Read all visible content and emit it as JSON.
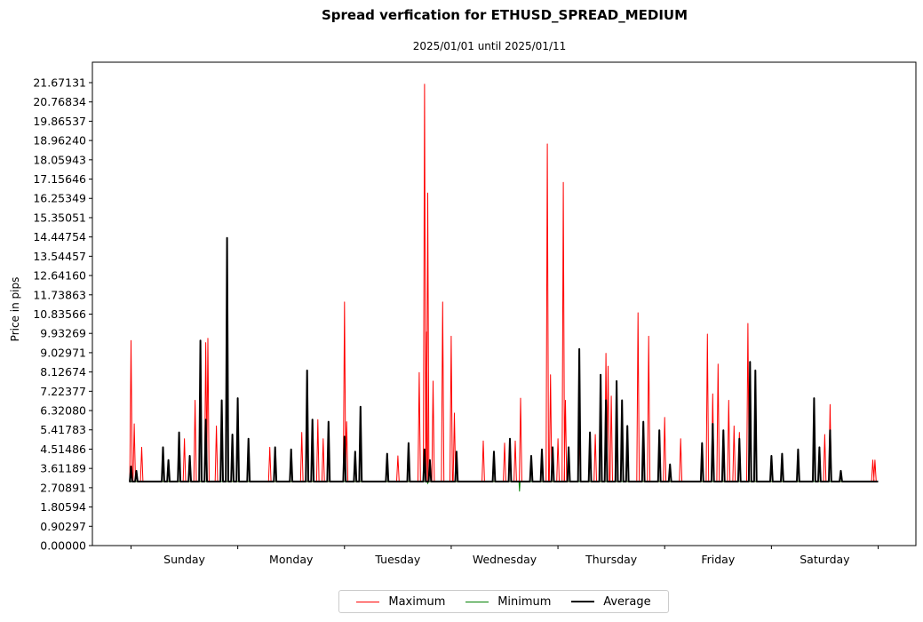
{
  "chart_data": {
    "type": "line",
    "title": "Spread verfication for ETHUSD_SPREAD_MEDIUM",
    "subtitle": "2025/01/01 until 2025/01/11",
    "ylabel": "Price in pips",
    "xlabel": "",
    "ylim": [
      0,
      21.67131
    ],
    "y_ticks": [
      "0.00000",
      "0.90297",
      "1.80594",
      "2.70891",
      "3.61189",
      "4.51486",
      "5.41783",
      "6.32080",
      "7.22377",
      "8.12674",
      "9.02971",
      "9.93269",
      "10.83566",
      "11.73863",
      "12.64160",
      "13.54457",
      "14.44754",
      "15.35051",
      "16.25349",
      "17.15646",
      "18.05943",
      "18.96240",
      "19.86537",
      "20.76834",
      "21.67131"
    ],
    "x_categories": [
      "Sunday",
      "Monday",
      "Tuesday",
      "Wednesday",
      "Thursday",
      "Friday",
      "Saturday"
    ],
    "x_range": [
      0,
      7
    ],
    "grid": false,
    "legend_position": "bottom-center",
    "baseline": 3.0,
    "series": [
      {
        "name": "Maximum",
        "color": "#ff0000",
        "stroke": 1,
        "spikes": [
          [
            0.0,
            9.6
          ],
          [
            0.03,
            5.7
          ],
          [
            0.1,
            4.6
          ],
          [
            0.5,
            5.0
          ],
          [
            0.6,
            6.8
          ],
          [
            0.7,
            9.5
          ],
          [
            0.72,
            9.7
          ],
          [
            0.8,
            5.6
          ],
          [
            0.85,
            5.8
          ],
          [
            1.3,
            4.6
          ],
          [
            1.6,
            5.3
          ],
          [
            1.75,
            5.9
          ],
          [
            1.8,
            5.0
          ],
          [
            2.0,
            11.4
          ],
          [
            2.02,
            5.8
          ],
          [
            2.5,
            4.2
          ],
          [
            2.7,
            8.1
          ],
          [
            2.75,
            21.6
          ],
          [
            2.77,
            10.0
          ],
          [
            2.78,
            16.5
          ],
          [
            2.83,
            7.7
          ],
          [
            2.92,
            11.4
          ],
          [
            3.0,
            9.8
          ],
          [
            3.03,
            6.2
          ],
          [
            3.3,
            4.9
          ],
          [
            3.5,
            4.8
          ],
          [
            3.6,
            4.9
          ],
          [
            3.65,
            6.9
          ],
          [
            3.75,
            4.0
          ],
          [
            3.9,
            18.8
          ],
          [
            3.93,
            8.0
          ],
          [
            4.0,
            5.0
          ],
          [
            4.05,
            17.0
          ],
          [
            4.07,
            6.8
          ],
          [
            4.2,
            5.0
          ],
          [
            4.35,
            5.2
          ],
          [
            4.45,
            9.0
          ],
          [
            4.47,
            8.4
          ],
          [
            4.5,
            7.0
          ],
          [
            4.6,
            6.1
          ],
          [
            4.75,
            10.9
          ],
          [
            4.85,
            9.8
          ],
          [
            5.0,
            6.0
          ],
          [
            5.15,
            5.0
          ],
          [
            5.4,
            9.9
          ],
          [
            5.45,
            7.1
          ],
          [
            5.5,
            8.5
          ],
          [
            5.6,
            6.8
          ],
          [
            5.65,
            5.6
          ],
          [
            5.7,
            5.3
          ],
          [
            5.78,
            10.4
          ],
          [
            6.4,
            6.1
          ],
          [
            6.5,
            5.2
          ],
          [
            6.55,
            6.6
          ],
          [
            6.95,
            4.0
          ],
          [
            6.97,
            4.0
          ]
        ]
      },
      {
        "name": "Minimum",
        "color": "#008000",
        "stroke": 1,
        "spikes": [
          [
            3.64,
            2.55
          ],
          [
            2.78,
            2.9
          ]
        ]
      },
      {
        "name": "Average",
        "color": "#000000",
        "stroke": 2,
        "spikes": [
          [
            0.0,
            3.7
          ],
          [
            0.05,
            3.5
          ],
          [
            0.3,
            4.6
          ],
          [
            0.35,
            4.0
          ],
          [
            0.45,
            5.3
          ],
          [
            0.55,
            4.2
          ],
          [
            0.65,
            9.6
          ],
          [
            0.7,
            5.9
          ],
          [
            0.85,
            6.8
          ],
          [
            0.9,
            14.4
          ],
          [
            0.95,
            5.2
          ],
          [
            1.0,
            6.9
          ],
          [
            1.1,
            5.0
          ],
          [
            1.35,
            4.6
          ],
          [
            1.5,
            4.5
          ],
          [
            1.65,
            8.2
          ],
          [
            1.7,
            5.9
          ],
          [
            1.85,
            5.8
          ],
          [
            2.0,
            5.1
          ],
          [
            2.1,
            4.4
          ],
          [
            2.15,
            6.5
          ],
          [
            2.4,
            4.3
          ],
          [
            2.6,
            4.8
          ],
          [
            2.75,
            4.5
          ],
          [
            2.8,
            4.0
          ],
          [
            3.05,
            4.4
          ],
          [
            3.4,
            4.4
          ],
          [
            3.55,
            5.0
          ],
          [
            3.75,
            4.2
          ],
          [
            3.85,
            4.5
          ],
          [
            3.95,
            4.6
          ],
          [
            4.1,
            4.6
          ],
          [
            4.2,
            9.2
          ],
          [
            4.3,
            5.3
          ],
          [
            4.4,
            8.0
          ],
          [
            4.45,
            6.8
          ],
          [
            4.55,
            7.7
          ],
          [
            4.6,
            6.8
          ],
          [
            4.65,
            5.6
          ],
          [
            4.8,
            5.8
          ],
          [
            4.95,
            5.4
          ],
          [
            5.05,
            3.8
          ],
          [
            5.35,
            4.8
          ],
          [
            5.45,
            5.7
          ],
          [
            5.55,
            5.4
          ],
          [
            5.7,
            5.0
          ],
          [
            5.8,
            8.6
          ],
          [
            5.85,
            8.2
          ],
          [
            6.0,
            4.2
          ],
          [
            6.1,
            4.3
          ],
          [
            6.25,
            4.5
          ],
          [
            6.4,
            6.9
          ],
          [
            6.45,
            4.6
          ],
          [
            6.55,
            5.4
          ],
          [
            6.65,
            3.5
          ],
          [
            6.7,
            3.0
          ]
        ]
      }
    ]
  },
  "legend": {
    "maximum_label": "Maximum",
    "minimum_label": "Minimum",
    "average_label": "Average"
  }
}
